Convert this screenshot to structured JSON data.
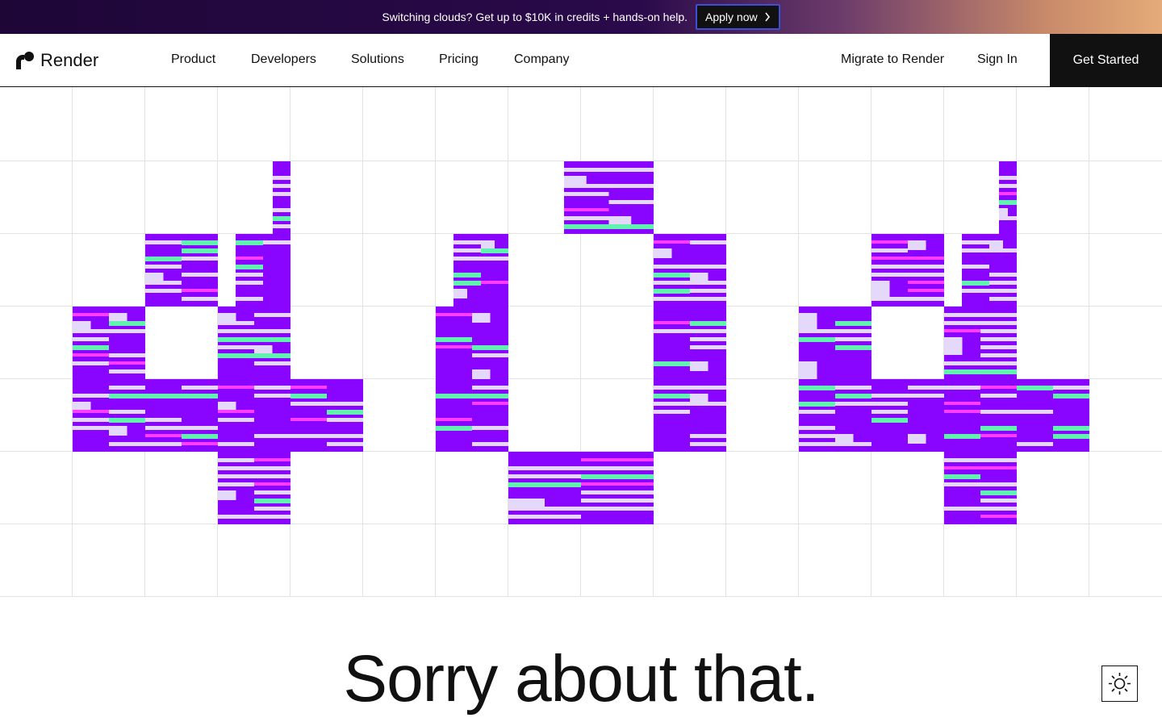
{
  "banner": {
    "text": "Switching clouds? Get up to $10K in credits + hands-on help.",
    "cta": "Apply now"
  },
  "nav": {
    "logo": "Render",
    "links": [
      "Product",
      "Developers",
      "Solutions",
      "Pricing",
      "Company"
    ],
    "migrate": "Migrate to Render",
    "sign_in": "Sign In",
    "get_started": "Get Started"
  },
  "heading": "Sorry about that."
}
